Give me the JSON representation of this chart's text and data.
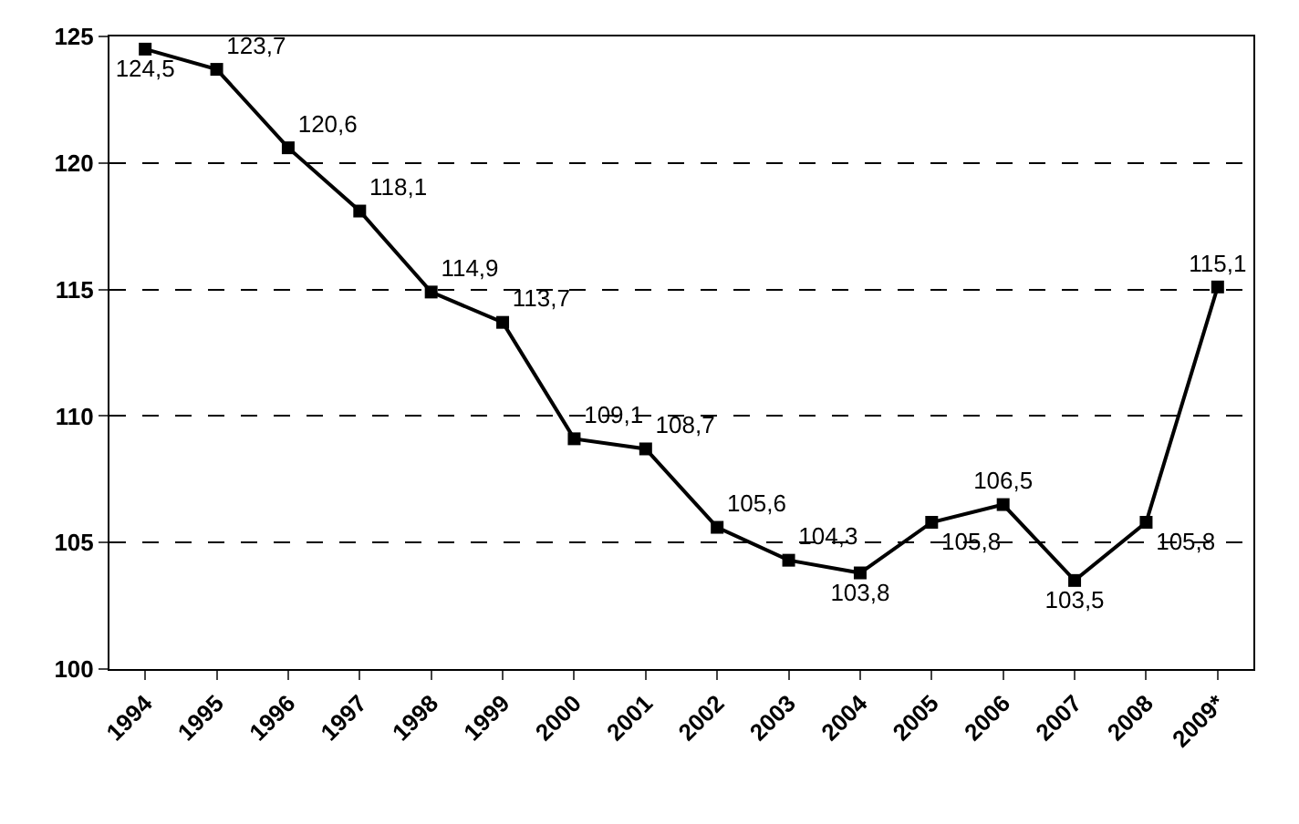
{
  "chart_data": {
    "type": "line",
    "categories": [
      "1994",
      "1995",
      "1996",
      "1997",
      "1998",
      "1999",
      "2000",
      "2001",
      "2002",
      "2003",
      "2004",
      "2005",
      "2006",
      "2007",
      "2008",
      "2009*"
    ],
    "series": [
      {
        "color": "#000000",
        "values": [
          124.5,
          123.7,
          120.6,
          118.1,
          114.9,
          113.7,
          109.1,
          108.7,
          105.6,
          104.3,
          103.8,
          105.8,
          106.5,
          103.5,
          105.8,
          115.1
        ],
        "value_labels": [
          "124,5",
          "123,7",
          "120,6",
          "118,1",
          "114,9",
          "113,7",
          "109,1",
          "108,7",
          "105,6",
          "104,3",
          "103,8",
          "105,8",
          "106,5",
          "103,5",
          "105,8",
          "115,1"
        ]
      }
    ],
    "ylim": [
      100,
      125
    ],
    "yticks": [
      100,
      105,
      110,
      115,
      120,
      125
    ],
    "grid": "y",
    "marker": "square",
    "line_style": "solid"
  }
}
